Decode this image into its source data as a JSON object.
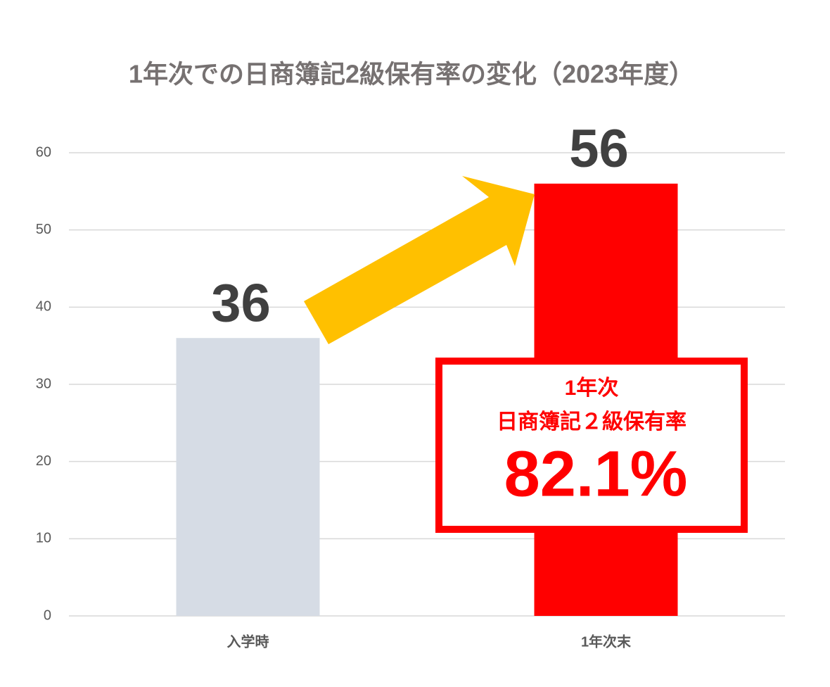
{
  "chart_data": {
    "type": "bar",
    "title": "1年次での日商簿記2級保有率の変化（2023年度）",
    "categories": [
      "入学時",
      "1年次末"
    ],
    "values": [
      36,
      56
    ],
    "colors": [
      "#d6dce5",
      "#ff0000"
    ],
    "ylim": [
      0,
      60
    ],
    "yticks": [
      0,
      10,
      20,
      30,
      40,
      50,
      60
    ],
    "grid": true,
    "annotation": {
      "lines": [
        "1年次",
        "日商簿記２級保有率"
      ],
      "highlight": "82.1%"
    }
  }
}
